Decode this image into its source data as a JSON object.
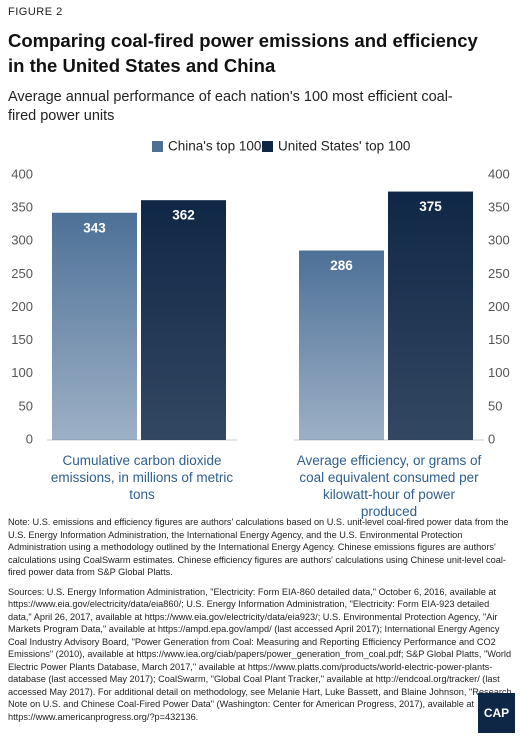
{
  "figure_label": "FIGURE 2",
  "title": "Comparing coal-fired power emissions and efficiency in the United States and China",
  "subtitle": "Average annual performance of each nation's 100 most efficient coal-fired power units",
  "chart_data": {
    "type": "bar",
    "categories": [
      "Cumulative carbon dioxide emissions, in millions of metric tons",
      "Average efficiency, or grams of coal equivalent consumed per kilowatt-hour of power produced"
    ],
    "series": [
      {
        "name": "China's top 100",
        "color": "#4d7097",
        "values": [
          343,
          286
        ]
      },
      {
        "name": "United States' top 100",
        "color": "#0f2746",
        "values": [
          362,
          375
        ]
      }
    ],
    "ylim": [
      0,
      400
    ],
    "yticks": [
      0,
      50,
      100,
      150,
      200,
      250,
      300,
      350,
      400
    ],
    "y2lim": [
      0,
      400
    ],
    "y2ticks": [
      0,
      50,
      100,
      150,
      200,
      250,
      300,
      350,
      400
    ]
  },
  "note": "Note: U.S. emissions and efficiency figures are authors' calculations based on U.S. unit-level coal-fired power data from the U.S. Energy Information Administration, the International Energy Agency, and the U.S. Environmental Protection Administration using a methodology outlined by the International Energy Agency. Chinese emissions figures are authors' calculations using CoalSwarm estimates. Chinese efficiency figures are authors' calculations using Chinese unit-level coal-fired power data from S&P Global Platts.",
  "sources": "Sources: U.S. Energy Information Administration, \"Electricity: Form EIA-860 detailed data,\" October 6, 2016, available at https://www.eia.gov/electricity/data/eia860/; U.S. Energy Information Administration, \"Electricity: Form EIA-923 detailed data,\" April 26, 2017, available at https://www.eia.gov/electricity/data/eia923/; U.S. Environmental Protection Agency, \"Air Markets Program Data,\" available at https://ampd.epa.gov/ampd/ (last accessed April 2017); International Energy Agency Coal Industry Advisory Board, \"Power Generation from Coal: Measuring and Reporting Efficiency Performance and CO2 Emissions\" (2010), available at https://www.iea.org/ciab/papers/power_generation_from_coal.pdf; S&P Global Platts, \"World Electric Power Plants Database, March 2017,\" available at https://www.platts.com/products/world-electric-power-plants-database (last accessed May 2017); CoalSwarm, \"Global Coal Plant Tracker,\" available at http://endcoal.org/tracker/ (last accessed May 2017). For additional detail on methodology, see Melanie Hart, Luke Bassett, and Blaine Johnson, \"Research Note on U.S. and Chinese Coal-Fired Power Data\" (Washington: Center for American Progress, 2017), available at https://www.americanprogress.org/?p=432136.",
  "logo": "CAP"
}
